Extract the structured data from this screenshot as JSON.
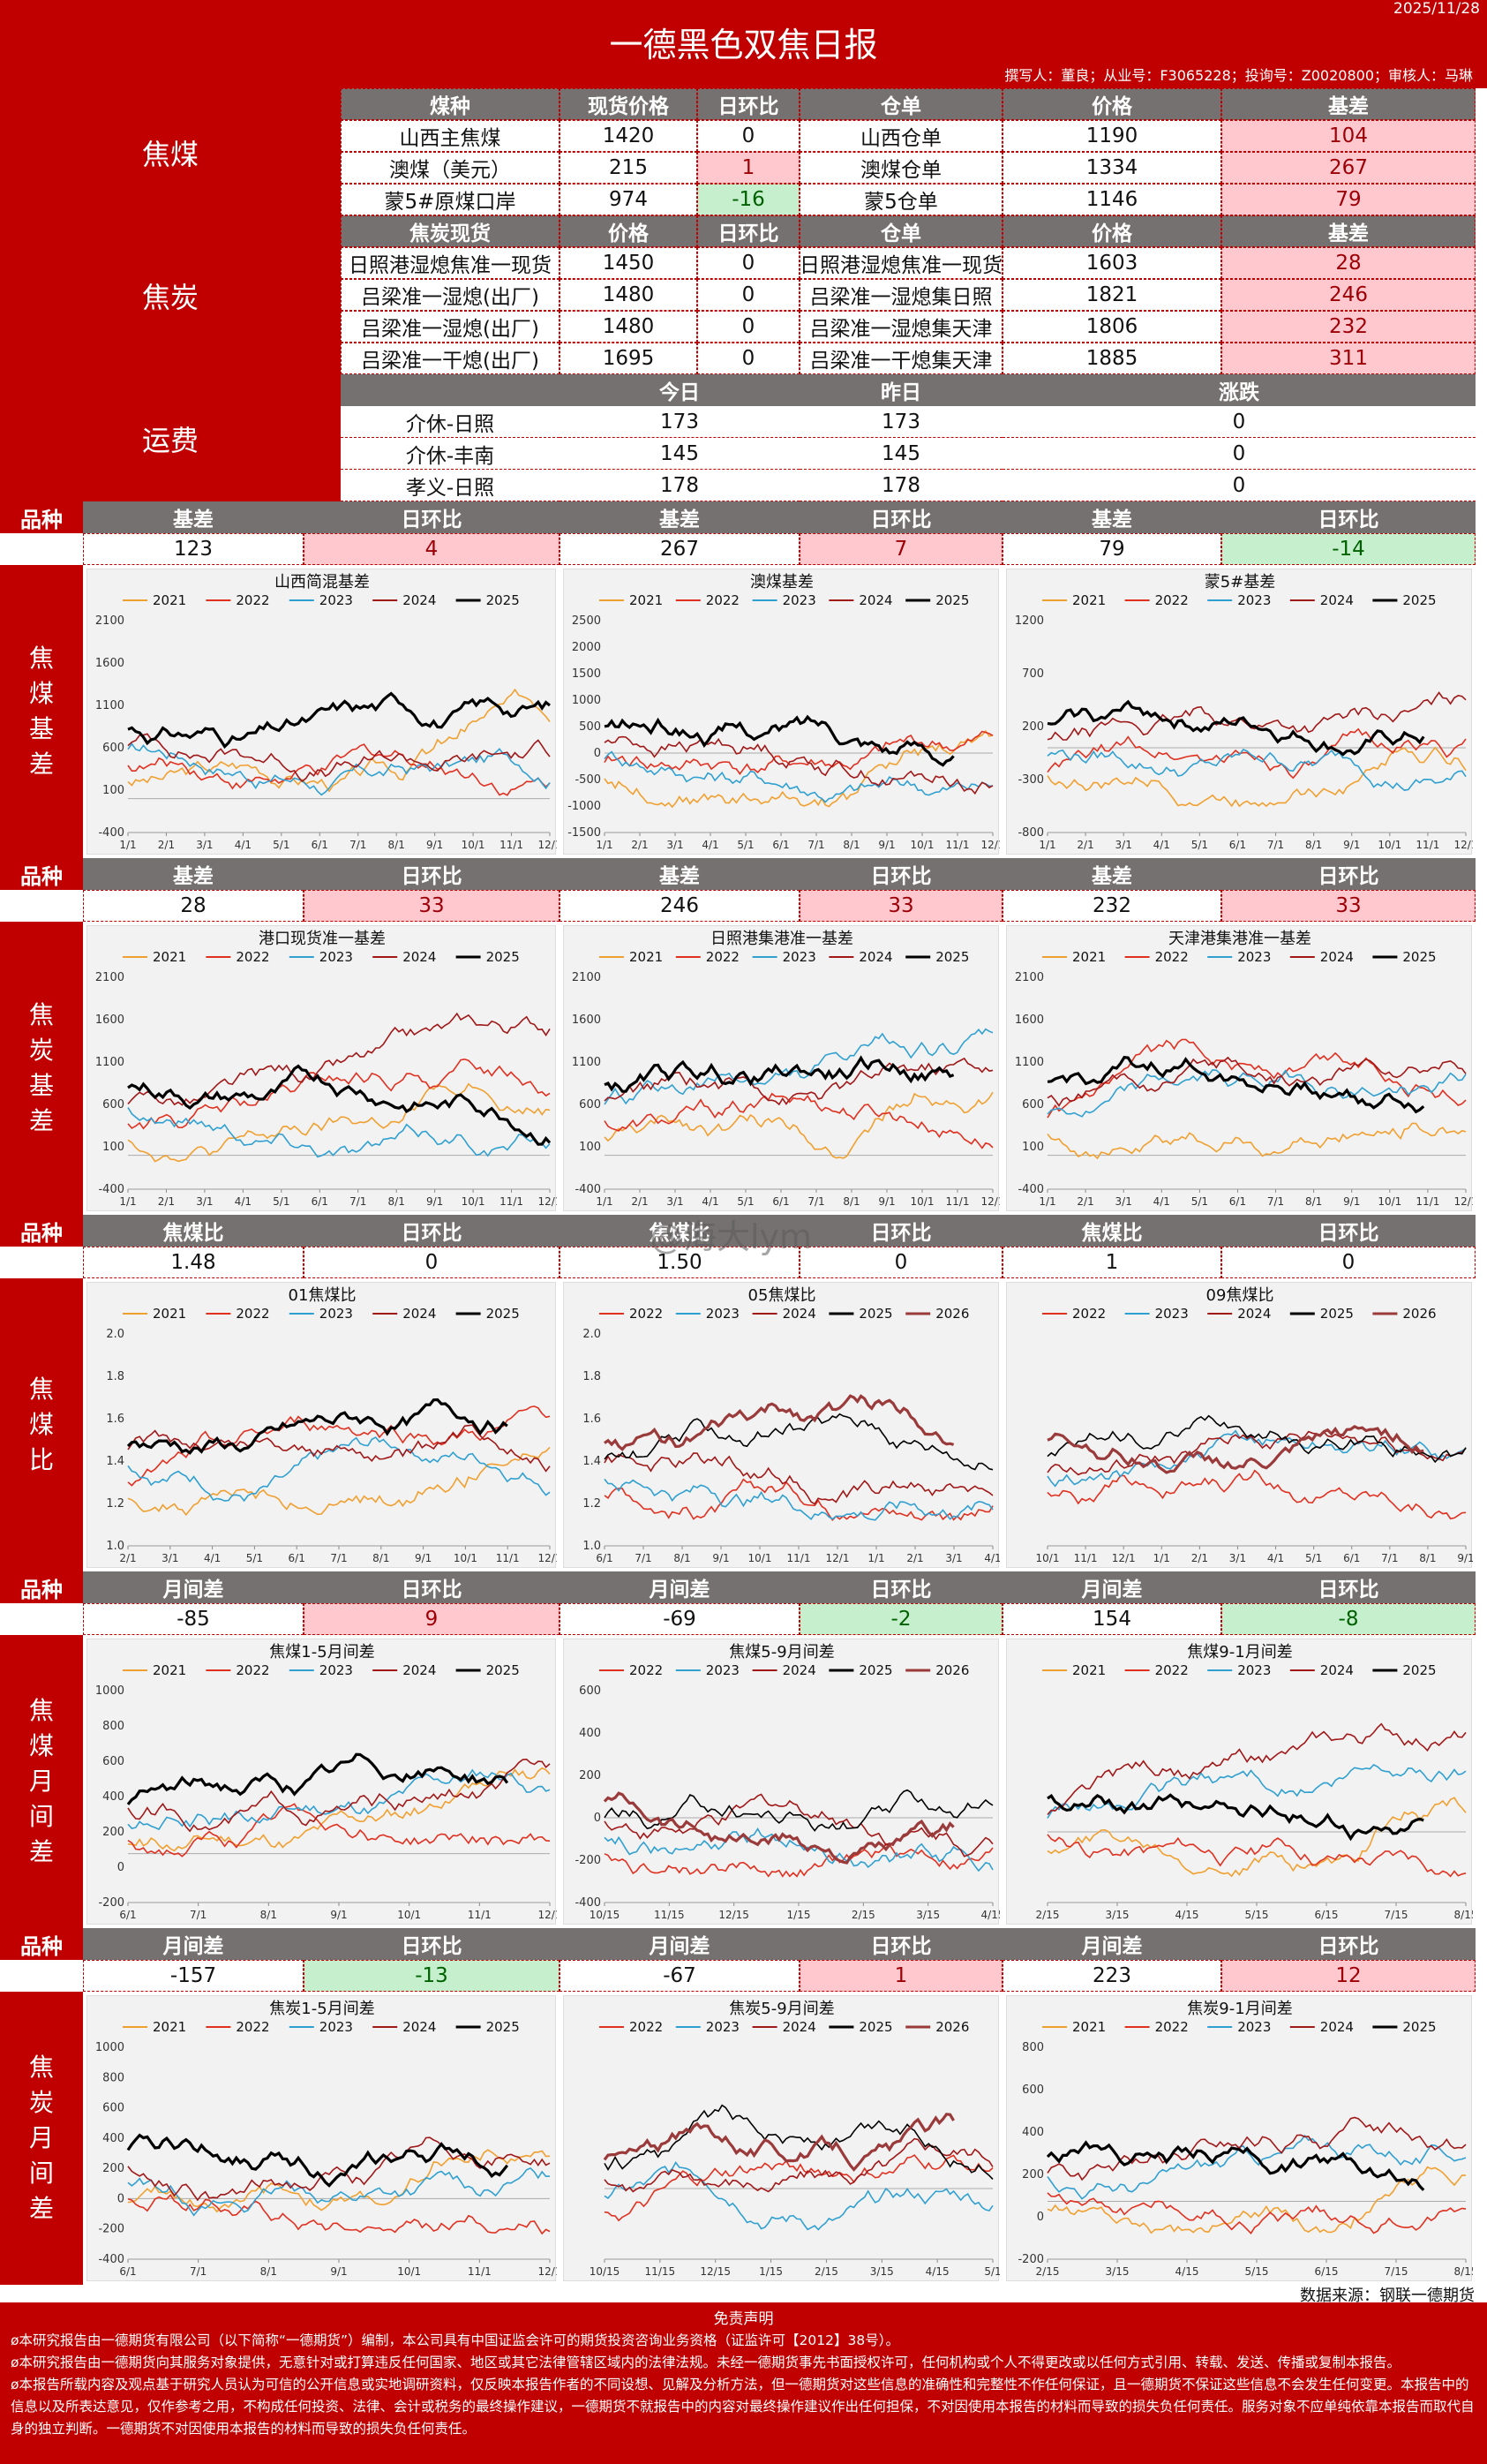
{
  "title": "一德黑色双焦日报",
  "date": "2025/11/28",
  "authors": "撰写人：董良；从业号：F3065228；投询号：Z0020800；审核人：马琳",
  "coking_coal": {
    "label": "焦煤",
    "headers": [
      "煤种",
      "现货价格",
      "日环比",
      "仓单",
      "价格",
      "基差"
    ],
    "rows": [
      [
        "山西主焦煤",
        "1420",
        "0",
        "山西仓单",
        "1190",
        "104"
      ],
      [
        "澳煤（美元）",
        "215",
        "1",
        "澳煤仓单",
        "1334",
        "267"
      ],
      [
        "蒙5#原煤口岸",
        "974",
        "-16",
        "蒙5仓单",
        "1146",
        "79"
      ]
    ]
  },
  "coke": {
    "label": "焦炭",
    "headers": [
      "焦炭现货",
      "价格",
      "日环比",
      "仓单",
      "价格",
      "基差"
    ],
    "rows": [
      [
        "日照港湿熄焦准一现货",
        "1450",
        "0",
        "日照港湿熄焦准一现货",
        "1603",
        "28"
      ],
      [
        "吕梁准一湿熄(出厂)",
        "1480",
        "0",
        "吕梁准一湿熄集日照",
        "1821",
        "246"
      ],
      [
        "吕梁准一湿熄(出厂)",
        "1480",
        "0",
        "吕梁准一湿熄集天津",
        "1806",
        "232"
      ],
      [
        "吕梁准一干熄(出厂)",
        "1695",
        "0",
        "吕梁准一干熄集天津",
        "1885",
        "311"
      ]
    ]
  },
  "freight": {
    "label": "运费",
    "headers": [
      "",
      "今日",
      "昨日",
      "涨跌"
    ],
    "rows": [
      [
        "介休-日照",
        "173",
        "173",
        "0"
      ],
      [
        "介休-丰南",
        "145",
        "145",
        "0"
      ],
      [
        "孝义-日照",
        "178",
        "178",
        "0"
      ]
    ]
  },
  "sections": [
    {
      "label": "焦\n煤\n基\n差",
      "pz": "品种",
      "heads": [
        "基差",
        "日环比",
        "基差",
        "日环比",
        "基差",
        "日环比"
      ],
      "vals": [
        "123",
        "4",
        "267",
        "7",
        "79",
        "-14"
      ],
      "charts": [
        {
          "title": "山西简混基差",
          "legend": [
            "2021",
            "2022",
            "2023",
            "2024",
            "2025"
          ],
          "ylim": [
            -400,
            2100
          ],
          "yticks": [
            "2100",
            "1600",
            "1100",
            "600",
            "100",
            "-400"
          ],
          "xticks": [
            "1/1",
            "2/1",
            "3/1",
            "4/1",
            "5/1",
            "6/1",
            "7/1",
            "8/1",
            "9/1",
            "10/1",
            "11/1",
            "12/1"
          ]
        },
        {
          "title": "澳煤基差",
          "legend": [
            "2021",
            "2022",
            "2023",
            "2024",
            "2025"
          ],
          "ylim": [
            -1500,
            2500
          ],
          "yticks": [
            "2500",
            "2000",
            "1500",
            "1000",
            "500",
            "0",
            "-500",
            "-1000",
            "-1500"
          ],
          "xticks": [
            "1/1",
            "2/1",
            "3/1",
            "4/1",
            "5/1",
            "6/1",
            "7/1",
            "8/1",
            "9/1",
            "10/1",
            "11/1",
            "12/1"
          ]
        },
        {
          "title": "蒙5#基差",
          "legend": [
            "2021",
            "2022",
            "2023",
            "2024",
            "2025"
          ],
          "ylim": [
            -800,
            1200
          ],
          "yticks": [
            "1200",
            "700",
            "200",
            "-300",
            "-800"
          ],
          "xticks": [
            "1/1",
            "2/1",
            "3/1",
            "4/1",
            "5/1",
            "6/1",
            "7/1",
            "8/1",
            "9/1",
            "10/1",
            "11/1",
            "12/1"
          ]
        }
      ]
    },
    {
      "label": "焦\n炭\n基\n差",
      "pz": "品种",
      "heads": [
        "基差",
        "日环比",
        "基差",
        "日环比",
        "基差",
        "日环比"
      ],
      "vals": [
        "28",
        "33",
        "246",
        "33",
        "232",
        "33"
      ],
      "charts": [
        {
          "title": "港口现货准一基差",
          "legend": [
            "2021",
            "2022",
            "2023",
            "2024",
            "2025"
          ],
          "ylim": [
            -400,
            2100
          ],
          "yticks": [
            "2100",
            "1600",
            "1100",
            "600",
            "100",
            "-400"
          ],
          "xticks": [
            "1/1",
            "2/1",
            "3/1",
            "4/1",
            "5/1",
            "6/1",
            "7/1",
            "8/1",
            "9/1",
            "10/1",
            "11/1",
            "12/1"
          ]
        },
        {
          "title": "日照港集港准一基差",
          "legend": [
            "2021",
            "2022",
            "2023",
            "2024",
            "2025"
          ],
          "ylim": [
            -400,
            2100
          ],
          "yticks": [
            "2100",
            "1600",
            "1100",
            "600",
            "100",
            "-400"
          ],
          "xticks": [
            "1/1",
            "2/1",
            "3/1",
            "4/1",
            "5/1",
            "6/1",
            "7/1",
            "8/1",
            "9/1",
            "10/1",
            "11/1",
            "12/1"
          ]
        },
        {
          "title": "天津港集港准一基差",
          "legend": [
            "2021",
            "2022",
            "2023",
            "2024",
            "2025"
          ],
          "ylim": [
            -400,
            2100
          ],
          "yticks": [
            "2100",
            "1600",
            "1100",
            "600",
            "100",
            "-400"
          ],
          "xticks": [
            "1/1",
            "2/1",
            "3/1",
            "4/1",
            "5/1",
            "6/1",
            "7/1",
            "8/1",
            "9/1",
            "10/1",
            "11/1",
            "12/1"
          ]
        }
      ]
    },
    {
      "label": "焦\n煤\n比",
      "pz": "品种",
      "heads": [
        "焦煤比",
        "日环比",
        "焦煤比",
        "日环比",
        "焦煤比",
        "日环比"
      ],
      "vals": [
        "1.48",
        "0",
        "1.50",
        "0",
        "1",
        "0"
      ],
      "charts": [
        {
          "title": "01焦煤比",
          "legend": [
            "2021",
            "2022",
            "2023",
            "2024",
            "2025"
          ],
          "ylim": [
            1.0,
            2.0
          ],
          "yticks": [
            "2.0",
            "1.8",
            "1.6",
            "1.4",
            "1.2",
            "1.0"
          ],
          "xticks": [
            "2/1",
            "3/1",
            "4/1",
            "5/1",
            "6/1",
            "7/1",
            "8/1",
            "9/1",
            "10/1",
            "11/1",
            "12/1"
          ]
        },
        {
          "title": "05焦煤比",
          "legend": [
            "2022",
            "2023",
            "2024",
            "2025",
            "2026"
          ],
          "ylim": [
            1.0,
            2.0
          ],
          "yticks": [
            "2.0",
            "1.8",
            "1.6",
            "1.4",
            "1.2",
            "1.0"
          ],
          "xticks": [
            "6/1",
            "7/1",
            "8/1",
            "9/1",
            "10/1",
            "11/1",
            "12/1",
            "1/1",
            "2/1",
            "3/1",
            "4/1"
          ]
        },
        {
          "title": "09焦煤比",
          "legend": [
            "2022",
            "2023",
            "2024",
            "2025",
            "2026"
          ],
          "ylim": [
            1.0,
            2.0
          ],
          "yticks": [
            "",
            "",
            "",
            "",
            "",
            ""
          ],
          "xticks": [
            "10/1",
            "11/1",
            "12/1",
            "1/1",
            "2/1",
            "3/1",
            "4/1",
            "5/1",
            "6/1",
            "7/1",
            "8/1",
            "9/1"
          ]
        }
      ]
    },
    {
      "label": "焦\n煤\n月\n间\n差",
      "pz": "品种",
      "heads": [
        "月间差",
        "日环比",
        "月间差",
        "日环比",
        "月间差",
        "日环比"
      ],
      "vals": [
        "-85",
        "9",
        "-69",
        "-2",
        "154",
        "-8"
      ],
      "charts": [
        {
          "title": "焦煤1-5月间差",
          "legend": [
            "2021",
            "2022",
            "2023",
            "2024",
            "2025"
          ],
          "ylim": [
            -300,
            1000
          ],
          "yticks": [
            "1000",
            "800",
            "600",
            "400",
            "200",
            "0",
            "-200"
          ],
          "xticks": [
            "6/1",
            "7/1",
            "8/1",
            "9/1",
            "10/1",
            "11/1",
            "12/1"
          ]
        },
        {
          "title": "焦煤5-9月间差",
          "legend": [
            "2022",
            "2023",
            "2024",
            "2025",
            "2026"
          ],
          "ylim": [
            -400,
            600
          ],
          "yticks": [
            "600",
            "400",
            "200",
            "0",
            "-200",
            "-400"
          ],
          "xticks": [
            "10/15",
            "11/15",
            "12/15",
            "1/15",
            "2/15",
            "3/15",
            "4/15"
          ]
        },
        {
          "title": "焦煤9-1月间差",
          "legend": [
            "2021",
            "2022",
            "2023",
            "2024",
            "2025"
          ],
          "ylim": [
            -300,
            600
          ],
          "yticks": [
            "",
            "",
            "",
            "",
            "",
            ""
          ],
          "xticks": [
            "2/15",
            "3/15",
            "4/15",
            "5/15",
            "6/15",
            "7/15",
            "8/15"
          ]
        }
      ]
    },
    {
      "label": "焦\n炭\n月\n间\n差",
      "pz": "品种",
      "heads": [
        "月间差",
        "日环比",
        "月间差",
        "日环比",
        "月间差",
        "日环比"
      ],
      "vals": [
        "-157",
        "-13",
        "-67",
        "1",
        "223",
        "12"
      ],
      "charts": [
        {
          "title": "焦炭1-5月间差",
          "legend": [
            "2021",
            "2022",
            "2023",
            "2024",
            "2025"
          ],
          "ylim": [
            -400,
            1000
          ],
          "yticks": [
            "1000",
            "800",
            "600",
            "400",
            "200",
            "0",
            "-200",
            "-400"
          ],
          "xticks": [
            "6/1",
            "7/1",
            "8/1",
            "9/1",
            "10/1",
            "11/1",
            "12/1"
          ]
        },
        {
          "title": "焦炭5-9月间差",
          "legend": [
            "2022",
            "2023",
            "2024",
            "2025",
            "2026"
          ],
          "ylim": [
            -300,
            600
          ],
          "yticks": [
            "",
            "",
            "",
            "",
            "",
            ""
          ],
          "xticks": [
            "10/15",
            "11/15",
            "12/15",
            "1/15",
            "2/15",
            "3/15",
            "4/15",
            "5/1"
          ]
        },
        {
          "title": "焦炭9-1月间差",
          "legend": [
            "2021",
            "2022",
            "2023",
            "2024",
            "2025"
          ],
          "ylim": [
            -300,
            800
          ],
          "yticks": [
            "800",
            "600",
            "400",
            "200",
            "0",
            "-200"
          ],
          "xticks": [
            "2/15",
            "3/15",
            "4/15",
            "5/15",
            "6/15",
            "7/15",
            "8/15"
          ]
        }
      ]
    }
  ],
  "watermark": "@海大lym",
  "source": "数据来源：钢联一德期货",
  "disclaimer_title": "免责声明",
  "disclaimer": [
    "ø本研究报告由一德期货有限公司（以下简称“一德期货”）编制，本公司具有中国证监会许可的期货投资咨询业务资格（证监许可【2012】38号）。",
    "ø本研究报告由一德期货向其服务对象提供，无意针对或打算违反任何国家、地区或其它法律管辖区域内的法律法规。未经一德期货事先书面授权许可，任何机构或个人不得更改或以任何方式引用、转载、发送、传播或复制本报告。",
    "ø本报告所载内容及观点基于研究人员认为可信的公开信息或实地调研资料，仅反映本报告作者的不同设想、见解及分析方法，但一德期货对这些信息的准确性和完整性不作任何保证，且一德期货不保证这些信息不会发生任何变更。本报告中的信息以及所表达意见，仅作参考之用，不构成任何投资、法律、会计或税务的最终操作建议，一德期货不就报告中的内容对最终操作建议作出任何担保，不对因使用本报告的材料而导致的损失负任何责任。服务对象不应单纯依靠本报告而取代自身的独立判断。一德期货不对因使用本报告的材料而导致的损失负任何责任。"
  ],
  "colors": {
    "2021": "#f0a030",
    "2022": "#e03020",
    "2023": "#30a0d0",
    "2024": "#a01818",
    "2025": "#000000",
    "2026": "#9a3a3a"
  }
}
